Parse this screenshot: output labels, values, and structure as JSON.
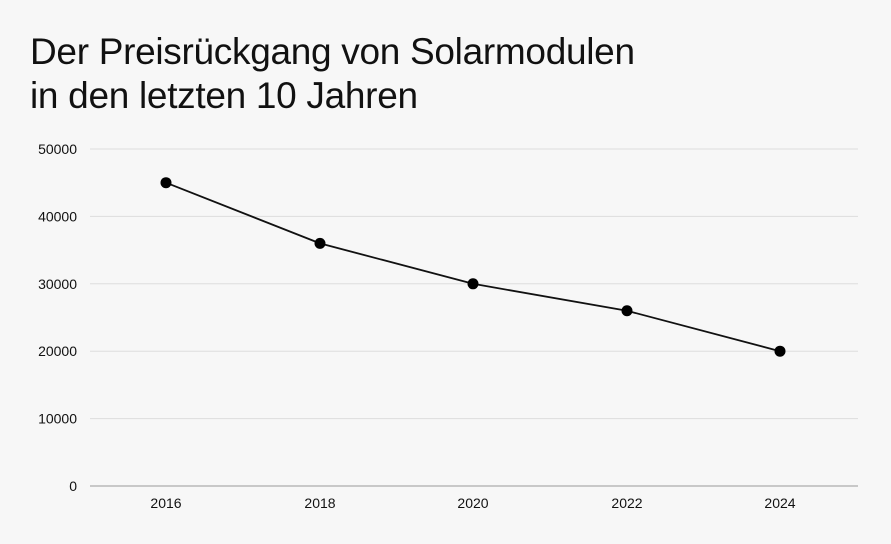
{
  "chart_data": {
    "type": "line",
    "title_lines": [
      "Der Preisrückgang von Solarmodulen",
      "in den letzten 10 Jahren"
    ],
    "xlabel": "",
    "ylabel": "",
    "categories": [
      "2016",
      "2018",
      "2020",
      "2022",
      "2024"
    ],
    "series": [
      {
        "values": [
          45000,
          36000,
          30000,
          26000,
          20000
        ]
      }
    ],
    "ylim": [
      0,
      50000
    ],
    "yticks": [
      0,
      10000,
      20000,
      30000,
      40000,
      50000
    ],
    "ytick_labels": [
      "0",
      "10000",
      "20000",
      "30000",
      "40000",
      "50000"
    ],
    "grid": true,
    "legend": "none",
    "colors": {
      "line": "#111111",
      "marker": "#000000",
      "grid": "#dddddd",
      "axis": "#999999",
      "background": "#f7f7f7"
    }
  }
}
